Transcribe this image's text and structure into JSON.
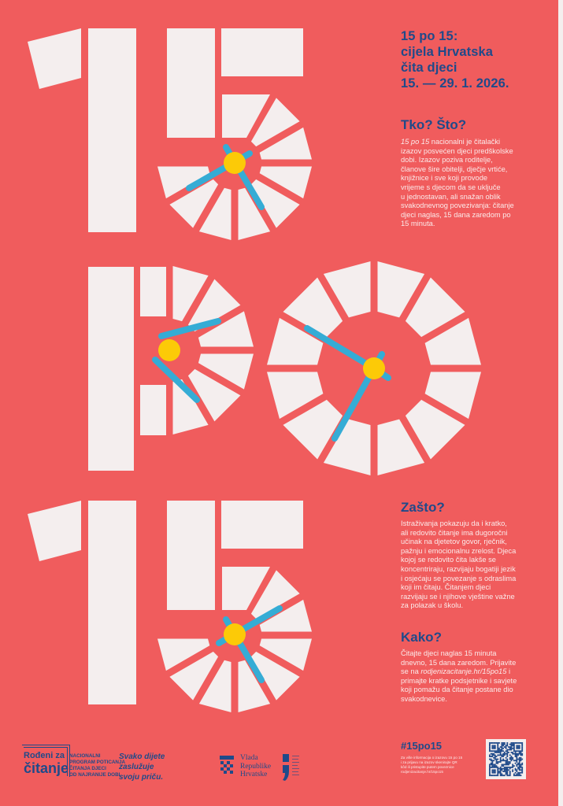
{
  "colors": {
    "background": "#f05c5d",
    "tile": "#f4eeee",
    "hand": "#35acd5",
    "pivot": "#fcca07",
    "heading": "#1f4a8a",
    "body_text": "#fbeaea"
  },
  "artwork": {
    "glyphs": [
      "1",
      "5",
      "p",
      "o",
      "1",
      "5"
    ],
    "text": "15 po 15"
  },
  "header": {
    "title": "15 po 15:\ncijela Hrvatska\nčita djeci\n15. — 29. 1. 2026."
  },
  "sections": {
    "tko": {
      "heading": "Tko? Što?",
      "italic": "15 po 15",
      "text": " nacionalni je čitalački\nizazov posvećen djeci predškolske\ndobi. Izazov poziva roditelje,\nčlanove šire obitelji, dječje vrtiće,\nknjižnice i sve koji provode\nvrijeme s djecom da se uključe\nu jednostavan, ali snažan oblik\nsvakodnevnog povezivanja: čitanje\ndjeci naglas, 15 dana zaredom po\n15 minuta."
    },
    "zasto": {
      "heading": "Zašto?",
      "text": "Istraživanja pokazuju da i kratko,\nali redovito čitanje ima dugoročni\nučinak na djetetov govor, rječnik,\npažnju i emocionalnu zrelost. Djeca\nkojoj se redovito čita lakše se\nkoncentriraju, razvijaju bogatiji jezik\ni osjećaju se povezanje s odraslima\nkoji im čitaju. Čitanjem djeci\nrazvijaju se i njihove vještine važne\nza polazak u školu."
    },
    "kako": {
      "heading": "Kako?",
      "before": "Čitajte djeci naglas 15 minuta\ndnevno, 15 dana zaredom. Prijavite\nse na ",
      "link": "rodjenizacitanje.hr/15po15",
      "after": " i\nprimajte kratke podsjetnike i savjete\nkoji pomažu da čitanje postane dio\nsvakodnevice."
    }
  },
  "footer": {
    "logo_line1": "Rođeni za",
    "logo_line2": "čitanje",
    "program": "NACIONALNI\nPROGRAM POTICANJA\nČITANJA DJECI\nOD NAJRANIJE DOBI",
    "slogan": "Svako dijete\nzaslužuje\nsvoju priču.",
    "vlada": "Vlada\nRepublike\nHrvatske",
    "hashtag": "#15po15",
    "qr_note": "Za više informacija o izazovu 15 po 15\ni za prijavu na izazov skenirajte QR\nkôd ili pristupite putem poveznice\nrodjenizacitanje.hr/15po15"
  }
}
